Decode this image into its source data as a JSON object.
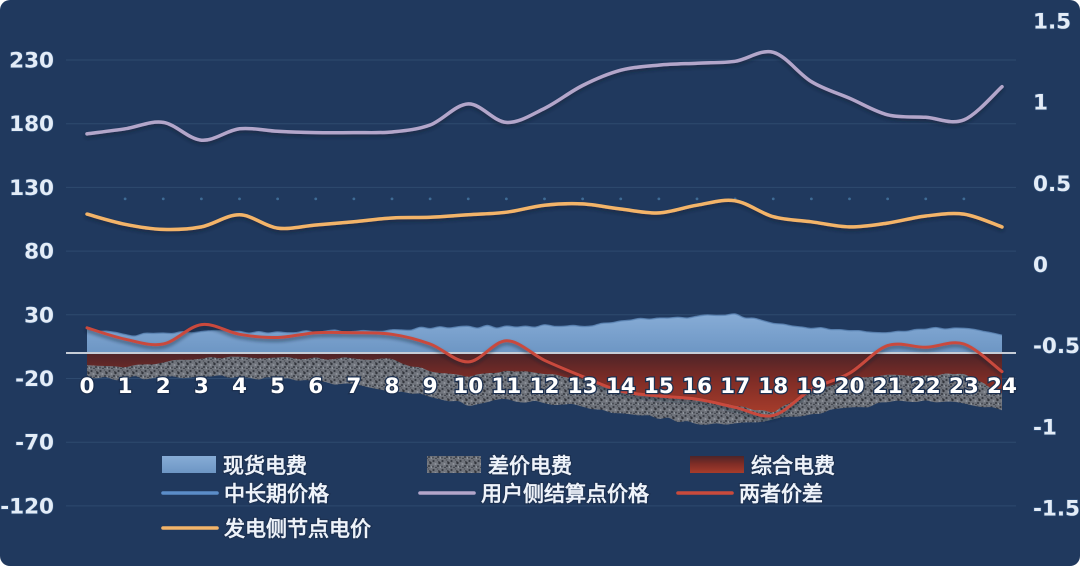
{
  "chart": {
    "background_color": "#20395e",
    "gridline_color": "#2e4a6f",
    "zero_line_color": "#c6cdd7",
    "axis_label_color": "#e3ecf7",
    "x_label_color": "#ffffff"
  },
  "chart_data": {
    "type": "combo",
    "title": "",
    "x": [
      0,
      1,
      2,
      3,
      4,
      5,
      6,
      7,
      8,
      9,
      10,
      11,
      12,
      13,
      14,
      15,
      16,
      17,
      18,
      19,
      20,
      21,
      22,
      23,
      24
    ],
    "x_axis": {
      "labels": [
        "0",
        "1",
        "2",
        "3",
        "4",
        "5",
        "6",
        "7",
        "8",
        "9",
        "10",
        "11",
        "12",
        "13",
        "14",
        "15",
        "16",
        "17",
        "18",
        "19",
        "20",
        "21",
        "22",
        "23",
        "24"
      ]
    },
    "y_axis_left": {
      "ticks": [
        230,
        180,
        130,
        80,
        30,
        -20,
        -70,
        -120
      ],
      "tick_labels": [
        "230",
        "180",
        "130",
        "80",
        "30",
        "-20",
        "-70",
        "-120"
      ],
      "range": [
        -145,
        255
      ],
      "grid": true
    },
    "y_axis_right": {
      "ticks": [
        1.5,
        1,
        0.5,
        0,
        -0.5,
        -1,
        -1.5
      ],
      "tick_labels": [
        "1.5",
        "1",
        "0.5",
        "0",
        "-0.5",
        "-1",
        "-1.5"
      ],
      "range": [
        -1.8,
        1.7
      ],
      "grid": false
    },
    "series": [
      {
        "name": "现货电费",
        "type": "area",
        "axis": "left",
        "color": "#7ba3cf",
        "style": "solid-blue",
        "values": [
          18.5,
          14,
          15,
          16.5,
          16.5,
          16,
          16.5,
          17.5,
          18,
          19.5,
          20.5,
          20.5,
          21.5,
          20.5,
          25.5,
          27,
          28.5,
          30,
          23,
          19.5,
          17.5,
          16,
          19,
          19.5,
          14
        ]
      },
      {
        "name": "差价电费",
        "type": "area",
        "axis": "left",
        "color": "#71757d",
        "style": "speckled-gray",
        "values": [
          -19,
          -20,
          -18.5,
          -18,
          -19.5,
          -20.5,
          -22.5,
          -25,
          -30.5,
          -34.5,
          -41,
          -37,
          -39.5,
          -42,
          -47.5,
          -51.5,
          -55,
          -55,
          -52.5,
          -47.5,
          -43.5,
          -39.5,
          -37,
          -39.5,
          -45
        ]
      },
      {
        "name": "综合电费",
        "type": "area",
        "axis": "left",
        "color": "#9e3328",
        "style": "gradient-red",
        "values": [
          -9.5,
          -11,
          -7,
          -4,
          -3.5,
          -3.5,
          -4,
          -4.5,
          -5,
          -14.5,
          -18.5,
          -14.5,
          -16,
          -20,
          -30.5,
          -34.5,
          -37,
          -42,
          -47,
          -29,
          -21,
          -17.5,
          -17.5,
          -16,
          -31.5
        ]
      },
      {
        "name": "中长期价格",
        "type": "line",
        "axis": "left",
        "color": "#5b8dc9",
        "width": 3,
        "values": [
          121,
          121,
          121,
          121,
          121,
          121,
          121,
          121,
          121,
          121,
          121,
          121,
          121,
          121,
          121,
          121,
          121,
          121,
          121,
          121,
          121,
          121,
          121,
          121,
          121
        ]
      },
      {
        "name": "用户侧结算点价格",
        "type": "line",
        "axis": "left",
        "color": "#b3a6ca",
        "width": 3.5,
        "values": [
          172,
          176,
          181,
          167,
          176,
          174,
          173,
          173,
          173.5,
          179,
          195.5,
          181,
          192,
          210,
          222,
          226,
          227.5,
          229,
          236,
          213,
          200,
          187,
          185,
          183,
          209
        ]
      },
      {
        "name": "两者价差",
        "type": "line",
        "axis": "right",
        "color": "#c94a3c",
        "width": 3,
        "values": [
          -0.39,
          -0.46,
          -0.49,
          -0.37,
          -0.43,
          -0.45,
          -0.42,
          -0.42,
          -0.43,
          -0.49,
          -0.6,
          -0.47,
          -0.59,
          -0.69,
          -0.78,
          -0.81,
          -0.83,
          -0.88,
          -0.93,
          -0.77,
          -0.67,
          -0.5,
          -0.51,
          -0.49,
          -0.66
        ]
      },
      {
        "name": "发电侧节点电价",
        "type": "line",
        "axis": "left",
        "color": "#f3b469",
        "width": 3.5,
        "values": [
          109,
          101,
          97,
          99,
          108.5,
          98,
          100.5,
          103,
          106,
          106.5,
          108.5,
          110.5,
          116,
          117,
          113,
          110,
          116,
          119.5,
          107,
          103,
          99,
          102,
          107.5,
          109,
          99
        ]
      }
    ],
    "legend": {
      "position": "bottom-left",
      "rows": [
        [
          "现货电费",
          "差价电费",
          "综合电费"
        ],
        [
          "中长期价格",
          "用户侧结算点价格",
          "两者价差"
        ],
        [
          "发电侧节点电价"
        ]
      ]
    }
  }
}
